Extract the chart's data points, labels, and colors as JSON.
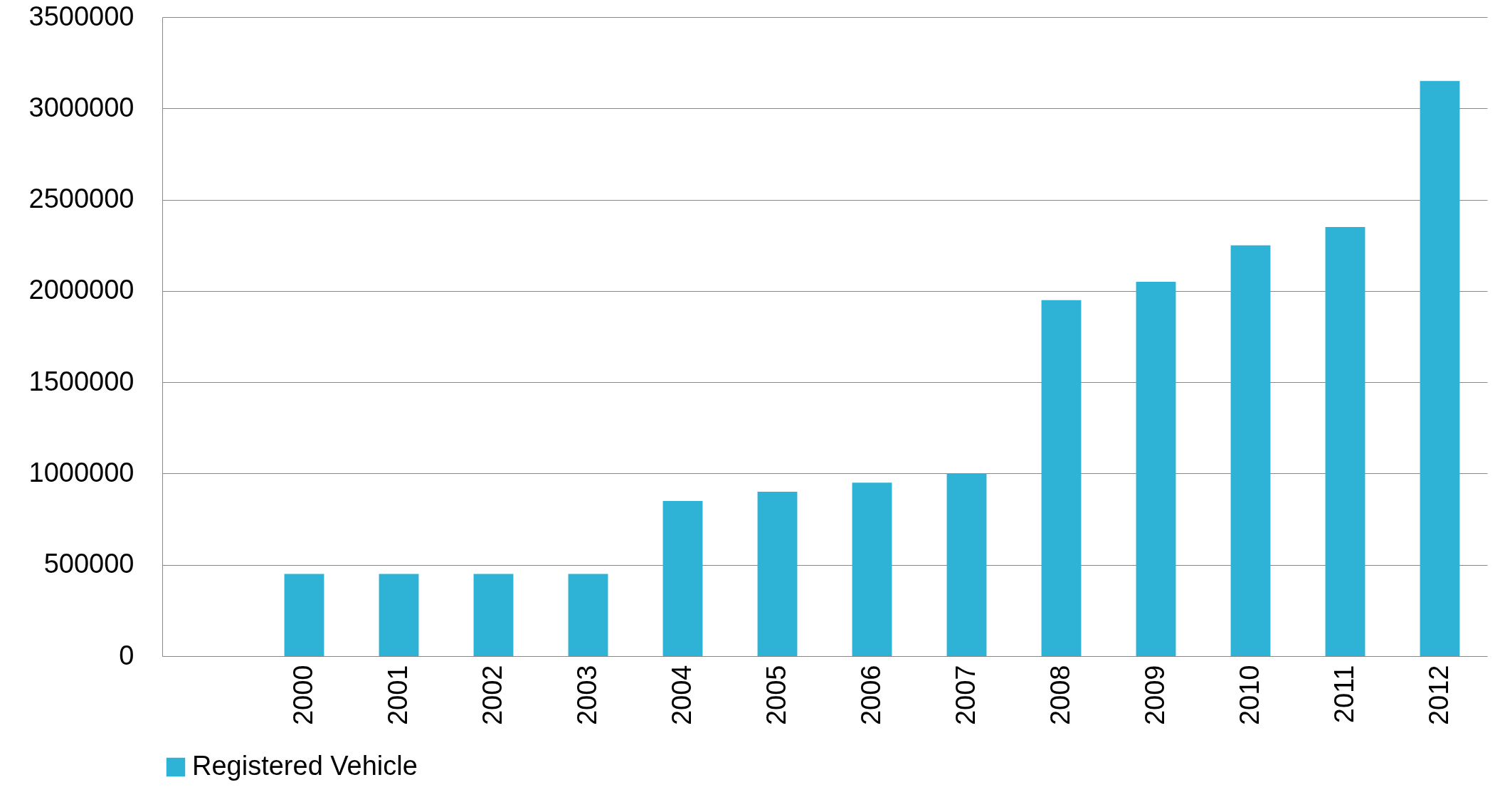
{
  "chart_data": {
    "type": "bar",
    "categories": [
      null,
      "2000",
      "2001",
      "2002",
      "2003",
      "2004",
      "2005",
      "2006",
      "2007",
      "2008",
      "2009",
      "2010",
      "2011",
      "2012"
    ],
    "series": [
      {
        "name": "Registered Vehicle",
        "color": "#2eb3d6",
        "values": [
          null,
          450000,
          450000,
          450000,
          450000,
          850000,
          900000,
          950000,
          1000000,
          1950000,
          2050000,
          2250000,
          2350000,
          3150000
        ]
      }
    ],
    "ylim": [
      0,
      3500000
    ],
    "yticks": [
      0,
      500000,
      1000000,
      1500000,
      2000000,
      2500000,
      3000000,
      3500000
    ],
    "grid": "y",
    "legend": "bottom"
  }
}
